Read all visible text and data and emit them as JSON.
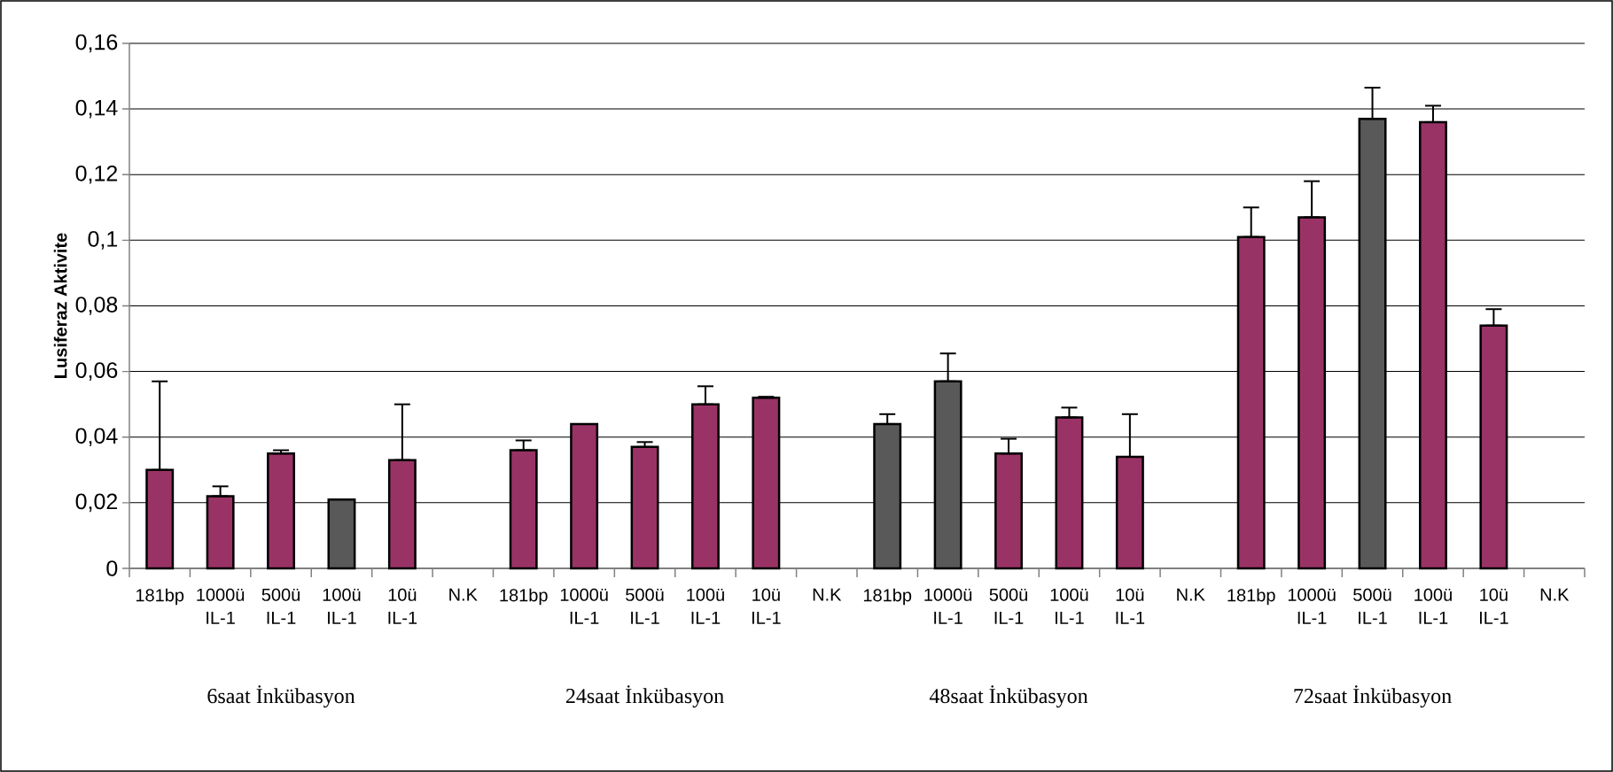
{
  "chart_data": {
    "type": "bar",
    "ylabel": "Lusiferaz Aktivite",
    "categories": [
      "181bp",
      "1000ü IL-1",
      "500ü IL-1",
      "100ü IL-1",
      "10ü IL-1",
      "N.K",
      "181bp",
      "1000ü IL-1",
      "500ü IL-1",
      "100ü IL-1",
      "10ü IL-1",
      "N.K",
      "181bp",
      "1000ü IL-1",
      "500ü IL-1",
      "100ü IL-1",
      "10ü IL-1",
      "N.K",
      "181bp",
      "1000ü IL-1",
      "500ü IL-1",
      "100ü IL-1",
      "10ü IL-1",
      "N.K"
    ],
    "values": [
      0.03,
      0.022,
      0.035,
      0.021,
      0.033,
      null,
      0.036,
      0.044,
      0.037,
      0.05,
      0.052,
      null,
      0.044,
      0.057,
      0.035,
      0.046,
      0.034,
      null,
      0.101,
      0.107,
      0.137,
      0.136,
      0.074,
      null
    ],
    "errors": [
      [
        0.03,
        0.057
      ],
      [
        0.022,
        0.025
      ],
      [
        0.035,
        0.036
      ],
      null,
      [
        0.033,
        0.05
      ],
      null,
      [
        0.036,
        0.039
      ],
      null,
      [
        0.037,
        0.0385
      ],
      [
        0.05,
        0.0555
      ],
      [
        0.052,
        0.0523
      ],
      null,
      [
        0.044,
        0.047
      ],
      [
        0.057,
        0.0655
      ],
      [
        0.035,
        0.0395
      ],
      [
        0.046,
        0.049
      ],
      [
        0.034,
        0.047
      ],
      null,
      [
        0.101,
        0.11
      ],
      [
        0.107,
        0.118
      ],
      [
        0.137,
        0.1465
      ],
      [
        0.136,
        0.141
      ],
      [
        0.074,
        0.079
      ],
      null
    ],
    "colors": [
      "#993366",
      "#993366",
      "#993366",
      "#595959",
      "#993366",
      null,
      "#993366",
      "#993366",
      "#993366",
      "#993366",
      "#993366",
      null,
      "#595959",
      "#595959",
      "#993366",
      "#993366",
      "#993366",
      null,
      "#993366",
      "#993366",
      "#595959",
      "#993366",
      "#993366",
      null
    ],
    "ylim": [
      0,
      0.16
    ],
    "yticks": [
      0,
      {
        "value": 0.02,
        "label": "0,02"
      },
      {
        "value": 0.04,
        "label": "0,04"
      },
      {
        "value": 0.06,
        "label": "0,06"
      },
      {
        "value": 0.08,
        "label": "0,08"
      },
      {
        "value": 0.1,
        "label": "0,1"
      },
      {
        "value": 0.12,
        "label": "0,12"
      },
      {
        "value": 0.14,
        "label": "0,14"
      },
      {
        "value": 0.16,
        "label": "0,16"
      }
    ],
    "grid": "y",
    "annotations": [
      "6saat İnkübasyon",
      "24saat İnkübasyon",
      "48saat İnkübasyon",
      "72saat İnkübasyon"
    ]
  }
}
